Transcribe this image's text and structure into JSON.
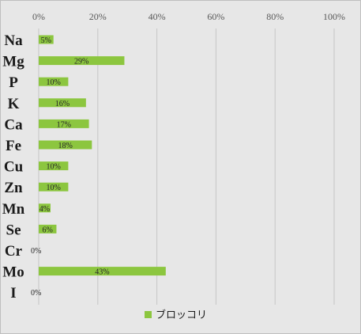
{
  "chart_data": {
    "type": "bar",
    "orientation": "horizontal",
    "categories": [
      "Na",
      "Mg",
      "P",
      "K",
      "Ca",
      "Fe",
      "Cu",
      "Zn",
      "Mn",
      "Se",
      "Cr",
      "Mo",
      "I"
    ],
    "series": [
      {
        "name": "ブロッコリ",
        "values": [
          5,
          29,
          10,
          16,
          17,
          18,
          10,
          10,
          4,
          6,
          0,
          43,
          0
        ]
      }
    ],
    "data_labels": [
      "5%",
      "29%",
      "10%",
      "16%",
      "17%",
      "18%",
      "10%",
      "10%",
      "4%",
      "6%",
      "0%",
      "43%",
      "0%"
    ],
    "x_ticks": [
      "0%",
      "20%",
      "40%",
      "60%",
      "80%",
      "100%"
    ],
    "xlim": [
      0,
      100
    ],
    "x_axis_position": "top",
    "grid": true,
    "legend": "bottom",
    "bar_color": "#8cc63f",
    "title": "",
    "xlabel": "",
    "ylabel": ""
  }
}
